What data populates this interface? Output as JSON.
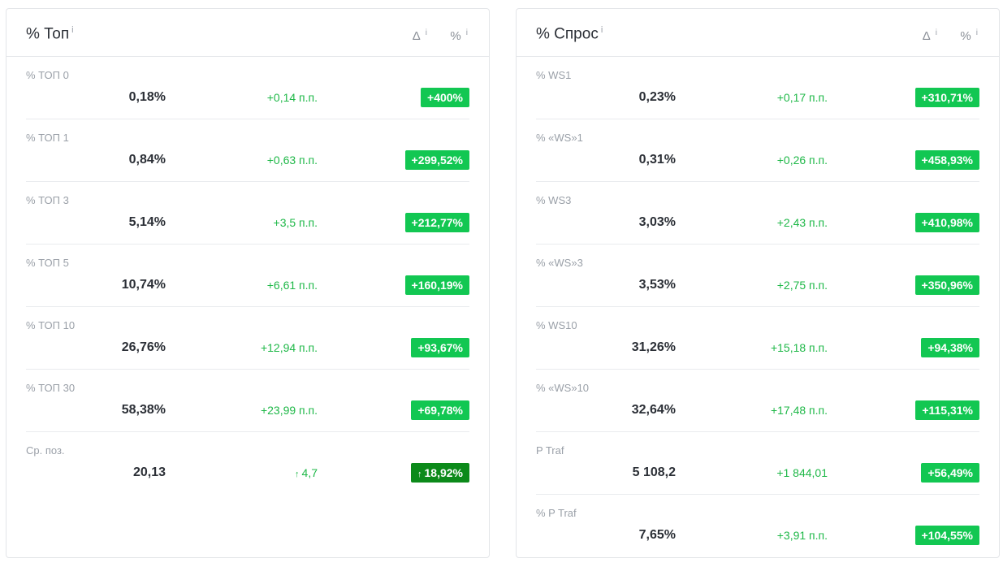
{
  "left_panel": {
    "title": "% Топ",
    "title_info": "i",
    "col_delta": "Δ",
    "col_pct": "%",
    "col_info": "i",
    "rows": [
      {
        "label": "% ТОП 0",
        "value": "0,18%",
        "delta": "+0,14 п.п.",
        "badge": "+400%"
      },
      {
        "label": "% ТОП 1",
        "value": "0,84%",
        "delta": "+0,63 п.п.",
        "badge": "+299,52%"
      },
      {
        "label": "% ТОП 3",
        "value": "5,14%",
        "delta": "+3,5 п.п.",
        "badge": "+212,77%"
      },
      {
        "label": "% ТОП 5",
        "value": "10,74%",
        "delta": "+6,61 п.п.",
        "badge": "+160,19%"
      },
      {
        "label": "% ТОП 10",
        "value": "26,76%",
        "delta": "+12,94 п.п.",
        "badge": "+93,67%"
      },
      {
        "label": "% ТОП 30",
        "value": "58,38%",
        "delta": "+23,99 п.п.",
        "badge": "+69,78%"
      },
      {
        "label": "Ср. поз.",
        "value": "20,13",
        "delta": "4,7",
        "badge": "18,92%",
        "arrow": "↑"
      }
    ]
  },
  "right_panel": {
    "title": "% Спрос",
    "title_info": "i",
    "col_delta": "Δ",
    "col_pct": "%",
    "col_info": "i",
    "rows": [
      {
        "label": "% WS1",
        "value": "0,23%",
        "delta": "+0,17 п.п.",
        "badge": "+310,71%"
      },
      {
        "label": "% «WS»1",
        "value": "0,31%",
        "delta": "+0,26 п.п.",
        "badge": "+458,93%"
      },
      {
        "label": "% WS3",
        "value": "3,03%",
        "delta": "+2,43 п.п.",
        "badge": "+410,98%"
      },
      {
        "label": "% «WS»3",
        "value": "3,53%",
        "delta": "+2,75 п.п.",
        "badge": "+350,96%"
      },
      {
        "label": "% WS10",
        "value": "31,26%",
        "delta": "+15,18 п.п.",
        "badge": "+94,38%"
      },
      {
        "label": "% «WS»10",
        "value": "32,64%",
        "delta": "+17,48 п.п.",
        "badge": "+115,31%"
      },
      {
        "label": "P Traf",
        "value": "5 108,2",
        "delta": "+1 844,01",
        "badge": "+56,49%"
      },
      {
        "label": "% P Traf",
        "value": "7,65%",
        "delta": "+3,91 п.п.",
        "badge": "+104,55%"
      }
    ]
  },
  "colors": {
    "badge_green": "#12c752",
    "badge_dark_green": "#0c8a1a",
    "delta_green": "#1fb848"
  },
  "icons": {
    "info": "info-icon",
    "up_arrow": "arrow-up-icon"
  }
}
